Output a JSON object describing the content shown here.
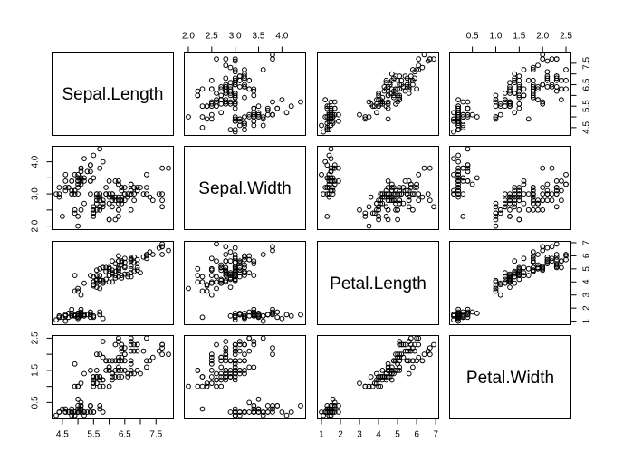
{
  "chart_data": {
    "type": "scatter",
    "subtype": "scatterplot-matrix",
    "title": "",
    "grid": false,
    "marker": "open-circle",
    "colors": {
      "points": "#000000",
      "frame": "#000000",
      "background": "#ffffff"
    },
    "variables": [
      {
        "name": "Sepal.Length",
        "range": [
          4.3,
          7.9
        ],
        "ticks": [
          4.5,
          5.0,
          5.5,
          6.0,
          6.5,
          7.0,
          7.5
        ],
        "tick_labels_h": [
          "4.5",
          "5.5",
          "6.5",
          "7.5"
        ],
        "tick_labels_v": [
          "4.5",
          "5.5",
          "6.5",
          "7.5"
        ]
      },
      {
        "name": "Sepal.Width",
        "range": [
          2.0,
          4.4
        ],
        "ticks": [
          2.0,
          2.5,
          3.0,
          3.5,
          4.0
        ],
        "tick_labels_h": [
          "2.0",
          "2.5",
          "3.0",
          "3.5",
          "4.0"
        ],
        "tick_labels_v": [
          "2.0",
          "3.0",
          "4.0"
        ]
      },
      {
        "name": "Petal.Length",
        "range": [
          1.0,
          6.9
        ],
        "ticks": [
          1,
          2,
          3,
          4,
          5,
          6,
          7
        ],
        "tick_labels_h": [
          "1",
          "2",
          "3",
          "4",
          "5",
          "6",
          "7"
        ],
        "tick_labels_v": [
          "1",
          "2",
          "3",
          "4",
          "5",
          "6",
          "7"
        ]
      },
      {
        "name": "Petal.Width",
        "range": [
          0.1,
          2.5
        ],
        "ticks": [
          0.5,
          1.0,
          1.5,
          2.0,
          2.5
        ],
        "tick_labels_h": [
          "0.5",
          "1.0",
          "1.5",
          "2.0",
          "2.5"
        ],
        "tick_labels_v": [
          "0.5",
          "1.5",
          "2.5"
        ]
      }
    ],
    "rows": [
      [
        5.1,
        3.5,
        1.4,
        0.2
      ],
      [
        4.9,
        3.0,
        1.4,
        0.2
      ],
      [
        4.7,
        3.2,
        1.3,
        0.2
      ],
      [
        4.6,
        3.1,
        1.5,
        0.2
      ],
      [
        5.0,
        3.6,
        1.4,
        0.2
      ],
      [
        5.4,
        3.9,
        1.7,
        0.4
      ],
      [
        4.6,
        3.4,
        1.4,
        0.3
      ],
      [
        5.0,
        3.4,
        1.5,
        0.2
      ],
      [
        4.4,
        2.9,
        1.4,
        0.2
      ],
      [
        4.9,
        3.1,
        1.5,
        0.1
      ],
      [
        5.4,
        3.7,
        1.5,
        0.2
      ],
      [
        4.8,
        3.4,
        1.6,
        0.2
      ],
      [
        4.8,
        3.0,
        1.4,
        0.1
      ],
      [
        4.3,
        3.0,
        1.1,
        0.1
      ],
      [
        5.8,
        4.0,
        1.2,
        0.2
      ],
      [
        5.7,
        4.4,
        1.5,
        0.4
      ],
      [
        5.4,
        3.9,
        1.3,
        0.4
      ],
      [
        5.1,
        3.5,
        1.4,
        0.3
      ],
      [
        5.7,
        3.8,
        1.7,
        0.3
      ],
      [
        5.1,
        3.8,
        1.5,
        0.3
      ],
      [
        5.4,
        3.4,
        1.7,
        0.2
      ],
      [
        5.1,
        3.7,
        1.5,
        0.4
      ],
      [
        4.6,
        3.6,
        1.0,
        0.2
      ],
      [
        5.1,
        3.3,
        1.7,
        0.5
      ],
      [
        4.8,
        3.4,
        1.9,
        0.2
      ],
      [
        5.0,
        3.0,
        1.6,
        0.2
      ],
      [
        5.0,
        3.4,
        1.6,
        0.4
      ],
      [
        5.2,
        3.5,
        1.5,
        0.2
      ],
      [
        5.2,
        3.4,
        1.4,
        0.2
      ],
      [
        4.7,
        3.2,
        1.6,
        0.2
      ],
      [
        4.8,
        3.1,
        1.6,
        0.2
      ],
      [
        5.4,
        3.4,
        1.5,
        0.4
      ],
      [
        5.2,
        4.1,
        1.5,
        0.1
      ],
      [
        5.5,
        4.2,
        1.4,
        0.2
      ],
      [
        4.9,
        3.1,
        1.5,
        0.2
      ],
      [
        5.0,
        3.2,
        1.2,
        0.2
      ],
      [
        5.5,
        3.5,
        1.3,
        0.2
      ],
      [
        4.9,
        3.6,
        1.4,
        0.1
      ],
      [
        4.4,
        3.0,
        1.3,
        0.2
      ],
      [
        5.1,
        3.4,
        1.5,
        0.2
      ],
      [
        5.0,
        3.5,
        1.3,
        0.3
      ],
      [
        4.5,
        2.3,
        1.3,
        0.3
      ],
      [
        4.4,
        3.2,
        1.3,
        0.2
      ],
      [
        5.0,
        3.5,
        1.6,
        0.6
      ],
      [
        5.1,
        3.8,
        1.9,
        0.4
      ],
      [
        4.8,
        3.0,
        1.4,
        0.3
      ],
      [
        5.1,
        3.8,
        1.6,
        0.2
      ],
      [
        4.6,
        3.2,
        1.4,
        0.2
      ],
      [
        5.3,
        3.7,
        1.5,
        0.2
      ],
      [
        5.0,
        3.3,
        1.4,
        0.2
      ],
      [
        7.0,
        3.2,
        4.7,
        1.4
      ],
      [
        6.4,
        3.2,
        4.5,
        1.5
      ],
      [
        6.9,
        3.1,
        4.9,
        1.5
      ],
      [
        5.5,
        2.3,
        4.0,
        1.3
      ],
      [
        6.5,
        2.8,
        4.6,
        1.5
      ],
      [
        5.7,
        2.8,
        4.5,
        1.3
      ],
      [
        6.3,
        3.3,
        4.7,
        1.6
      ],
      [
        4.9,
        2.4,
        3.3,
        1.0
      ],
      [
        6.6,
        2.9,
        4.6,
        1.3
      ],
      [
        5.2,
        2.7,
        3.9,
        1.4
      ],
      [
        5.0,
        2.0,
        3.5,
        1.0
      ],
      [
        5.9,
        3.0,
        4.2,
        1.5
      ],
      [
        6.0,
        2.2,
        4.0,
        1.0
      ],
      [
        6.1,
        2.9,
        4.7,
        1.4
      ],
      [
        5.6,
        2.9,
        3.6,
        1.3
      ],
      [
        6.7,
        3.1,
        4.4,
        1.4
      ],
      [
        5.6,
        3.0,
        4.5,
        1.5
      ],
      [
        5.8,
        2.7,
        4.1,
        1.0
      ],
      [
        6.2,
        2.2,
        4.5,
        1.5
      ],
      [
        5.6,
        2.5,
        3.9,
        1.1
      ],
      [
        5.9,
        3.2,
        4.8,
        1.8
      ],
      [
        6.1,
        2.8,
        4.0,
        1.3
      ],
      [
        6.3,
        2.5,
        4.9,
        1.5
      ],
      [
        6.1,
        2.8,
        4.7,
        1.2
      ],
      [
        6.4,
        2.9,
        4.3,
        1.3
      ],
      [
        6.6,
        3.0,
        4.4,
        1.4
      ],
      [
        6.8,
        2.8,
        4.8,
        1.4
      ],
      [
        6.7,
        3.0,
        5.0,
        1.7
      ],
      [
        6.0,
        2.9,
        4.5,
        1.5
      ],
      [
        5.7,
        2.6,
        3.5,
        1.0
      ],
      [
        5.5,
        2.4,
        3.8,
        1.1
      ],
      [
        5.5,
        2.4,
        3.7,
        1.0
      ],
      [
        5.8,
        2.7,
        3.9,
        1.2
      ],
      [
        6.0,
        2.7,
        5.1,
        1.6
      ],
      [
        5.4,
        3.0,
        4.5,
        1.5
      ],
      [
        6.0,
        3.4,
        4.5,
        1.6
      ],
      [
        6.7,
        3.1,
        4.7,
        1.5
      ],
      [
        6.3,
        2.3,
        4.4,
        1.3
      ],
      [
        5.6,
        3.0,
        4.1,
        1.3
      ],
      [
        5.5,
        2.5,
        4.0,
        1.3
      ],
      [
        5.5,
        2.6,
        4.4,
        1.2
      ],
      [
        6.1,
        3.0,
        4.6,
        1.4
      ],
      [
        5.8,
        2.6,
        4.0,
        1.2
      ],
      [
        5.0,
        2.3,
        3.3,
        1.0
      ],
      [
        5.6,
        2.7,
        4.2,
        1.3
      ],
      [
        5.7,
        3.0,
        4.2,
        1.2
      ],
      [
        5.7,
        2.9,
        4.2,
        1.3
      ],
      [
        6.2,
        2.9,
        4.3,
        1.3
      ],
      [
        5.1,
        2.5,
        3.0,
        1.1
      ],
      [
        5.7,
        2.8,
        4.1,
        1.3
      ],
      [
        6.3,
        3.3,
        6.0,
        2.5
      ],
      [
        5.8,
        2.7,
        5.1,
        1.9
      ],
      [
        7.1,
        3.0,
        5.9,
        2.1
      ],
      [
        6.3,
        2.9,
        5.6,
        1.8
      ],
      [
        6.5,
        3.0,
        5.8,
        2.2
      ],
      [
        7.6,
        3.0,
        6.6,
        2.1
      ],
      [
        4.9,
        2.5,
        4.5,
        1.7
      ],
      [
        7.3,
        2.9,
        6.3,
        1.8
      ],
      [
        6.7,
        2.5,
        5.8,
        1.8
      ],
      [
        7.2,
        3.6,
        6.1,
        2.5
      ],
      [
        6.5,
        3.2,
        5.1,
        2.0
      ],
      [
        6.4,
        2.7,
        5.3,
        1.9
      ],
      [
        6.8,
        3.0,
        5.5,
        2.1
      ],
      [
        5.7,
        2.5,
        5.0,
        2.0
      ],
      [
        5.8,
        2.8,
        5.1,
        2.4
      ],
      [
        6.4,
        3.2,
        5.3,
        2.3
      ],
      [
        6.5,
        3.0,
        5.5,
        1.8
      ],
      [
        7.7,
        3.8,
        6.7,
        2.2
      ],
      [
        7.7,
        2.6,
        6.9,
        2.3
      ],
      [
        6.0,
        2.2,
        5.0,
        1.5
      ],
      [
        6.9,
        3.2,
        5.7,
        2.3
      ],
      [
        5.6,
        2.8,
        4.9,
        2.0
      ],
      [
        7.7,
        2.8,
        6.7,
        2.0
      ],
      [
        6.3,
        2.7,
        4.9,
        1.8
      ],
      [
        6.7,
        3.3,
        5.7,
        2.1
      ],
      [
        7.2,
        3.2,
        6.0,
        1.8
      ],
      [
        6.2,
        2.8,
        4.8,
        1.8
      ],
      [
        6.1,
        3.0,
        4.9,
        1.8
      ],
      [
        6.4,
        2.8,
        5.6,
        2.1
      ],
      [
        7.2,
        3.0,
        5.8,
        1.6
      ],
      [
        7.4,
        2.8,
        6.1,
        1.9
      ],
      [
        7.9,
        3.8,
        6.4,
        2.0
      ],
      [
        6.4,
        2.8,
        5.6,
        2.2
      ],
      [
        6.3,
        2.8,
        5.1,
        1.5
      ],
      [
        6.1,
        2.6,
        5.6,
        1.4
      ],
      [
        7.7,
        3.0,
        6.1,
        2.3
      ],
      [
        6.3,
        3.4,
        5.6,
        2.4
      ],
      [
        6.4,
        3.1,
        5.5,
        1.8
      ],
      [
        6.0,
        3.0,
        4.8,
        1.8
      ],
      [
        6.9,
        3.1,
        5.4,
        2.1
      ],
      [
        6.7,
        3.1,
        5.6,
        2.4
      ],
      [
        6.9,
        3.1,
        5.1,
        2.3
      ],
      [
        5.8,
        2.7,
        5.1,
        1.9
      ],
      [
        6.8,
        3.2,
        5.9,
        2.3
      ],
      [
        6.7,
        3.3,
        5.7,
        2.5
      ],
      [
        6.7,
        3.0,
        5.2,
        2.3
      ],
      [
        6.3,
        2.5,
        5.0,
        1.9
      ],
      [
        6.5,
        3.0,
        5.2,
        2.0
      ],
      [
        6.2,
        3.4,
        5.4,
        2.3
      ],
      [
        5.9,
        3.0,
        5.1,
        1.8
      ]
    ]
  }
}
